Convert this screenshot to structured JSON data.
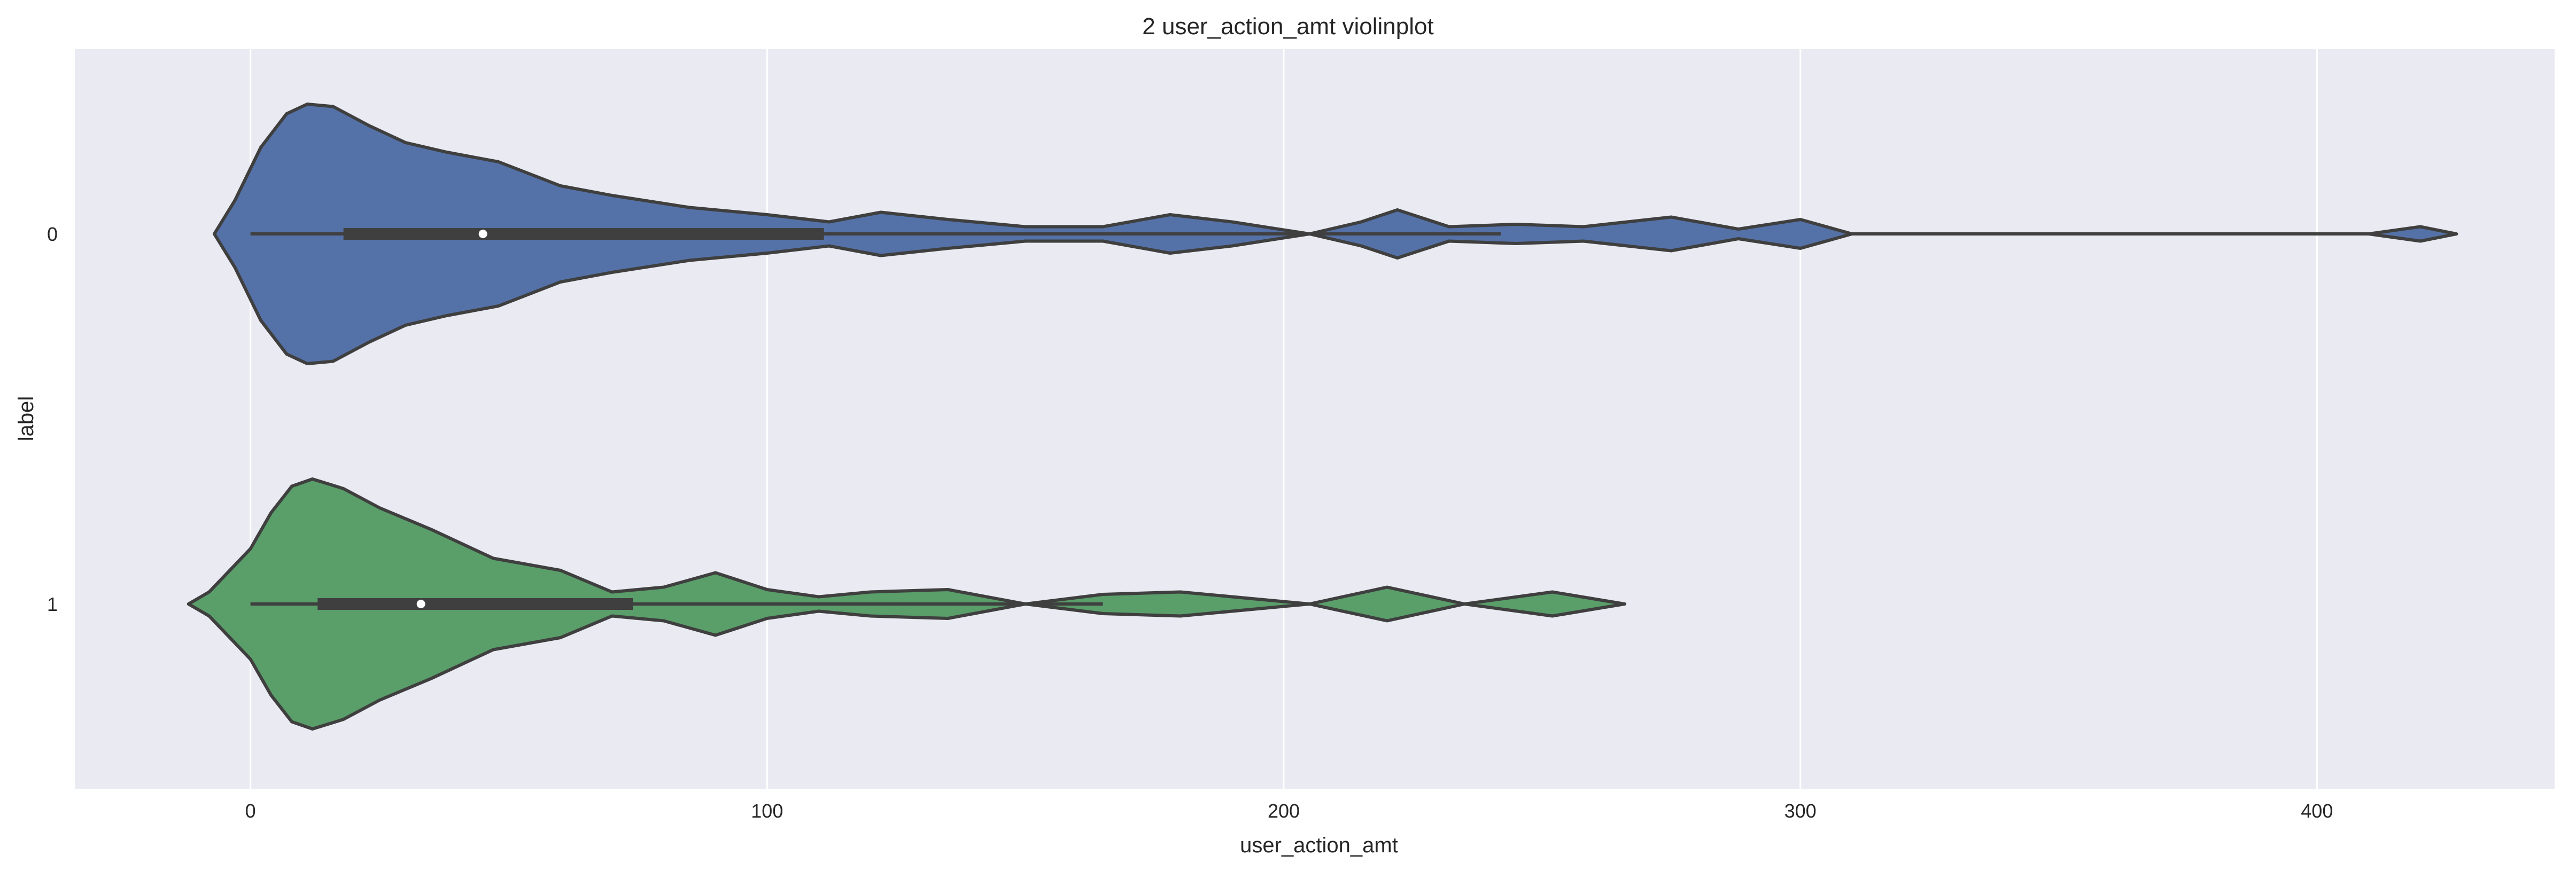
{
  "chart_data": {
    "type": "violin",
    "orientation": "horizontal",
    "title": "2 user_action_amt violinplot",
    "xlabel": "user_action_amt",
    "ylabel": "label",
    "xlim": [
      -34,
      446
    ],
    "xticks": [
      0,
      100,
      200,
      300,
      400
    ],
    "xtick_labels": [
      "0",
      "100",
      "200",
      "300",
      "400"
    ],
    "grid": true,
    "categories": [
      "0",
      "1"
    ],
    "series": [
      {
        "category": "0",
        "color": "#5572a8",
        "box": {
          "whisker_low": 0,
          "q1": 18,
          "median": 45,
          "q3": 111,
          "whisker_high": 242
        },
        "density": [
          [
            -7,
            0.0
          ],
          [
            -3,
            0.14
          ],
          [
            2,
            0.36
          ],
          [
            7,
            0.5
          ],
          [
            11,
            0.54
          ],
          [
            16,
            0.53
          ],
          [
            23,
            0.45
          ],
          [
            30,
            0.38
          ],
          [
            38,
            0.34
          ],
          [
            48,
            0.3
          ],
          [
            60,
            0.2
          ],
          [
            70,
            0.16
          ],
          [
            85,
            0.11
          ],
          [
            100,
            0.08
          ],
          [
            112,
            0.05
          ],
          [
            122,
            0.09
          ],
          [
            135,
            0.06
          ],
          [
            150,
            0.03
          ],
          [
            165,
            0.03
          ],
          [
            178,
            0.08
          ],
          [
            190,
            0.05
          ],
          [
            205,
            0.0
          ],
          [
            215,
            0.05
          ],
          [
            222,
            0.1
          ],
          [
            232,
            0.03
          ],
          [
            245,
            0.04
          ],
          [
            258,
            0.03
          ],
          [
            275,
            0.07
          ],
          [
            288,
            0.02
          ],
          [
            300,
            0.06
          ],
          [
            310,
            0.0
          ],
          [
            360,
            0.0
          ],
          [
            410,
            0.0
          ],
          [
            420,
            0.03
          ],
          [
            427,
            0.0
          ]
        ]
      },
      {
        "category": "1",
        "color": "#5a9e6a",
        "box": {
          "whisker_low": 0,
          "q1": 13,
          "median": 33,
          "q3": 74,
          "whisker_high": 165
        },
        "density": [
          [
            -12,
            0.0
          ],
          [
            -8,
            0.05
          ],
          [
            0,
            0.23
          ],
          [
            4,
            0.38
          ],
          [
            8,
            0.49
          ],
          [
            12,
            0.52
          ],
          [
            18,
            0.48
          ],
          [
            25,
            0.4
          ],
          [
            35,
            0.31
          ],
          [
            47,
            0.19
          ],
          [
            60,
            0.14
          ],
          [
            70,
            0.05
          ],
          [
            80,
            0.07
          ],
          [
            90,
            0.13
          ],
          [
            100,
            0.06
          ],
          [
            110,
            0.03
          ],
          [
            120,
            0.05
          ],
          [
            135,
            0.06
          ],
          [
            150,
            0.0
          ],
          [
            165,
            0.04
          ],
          [
            180,
            0.05
          ],
          [
            195,
            0.02
          ],
          [
            205,
            0.0
          ],
          [
            220,
            0.07
          ],
          [
            235,
            0.0
          ],
          [
            252,
            0.05
          ],
          [
            266,
            0.0
          ]
        ]
      }
    ]
  }
}
